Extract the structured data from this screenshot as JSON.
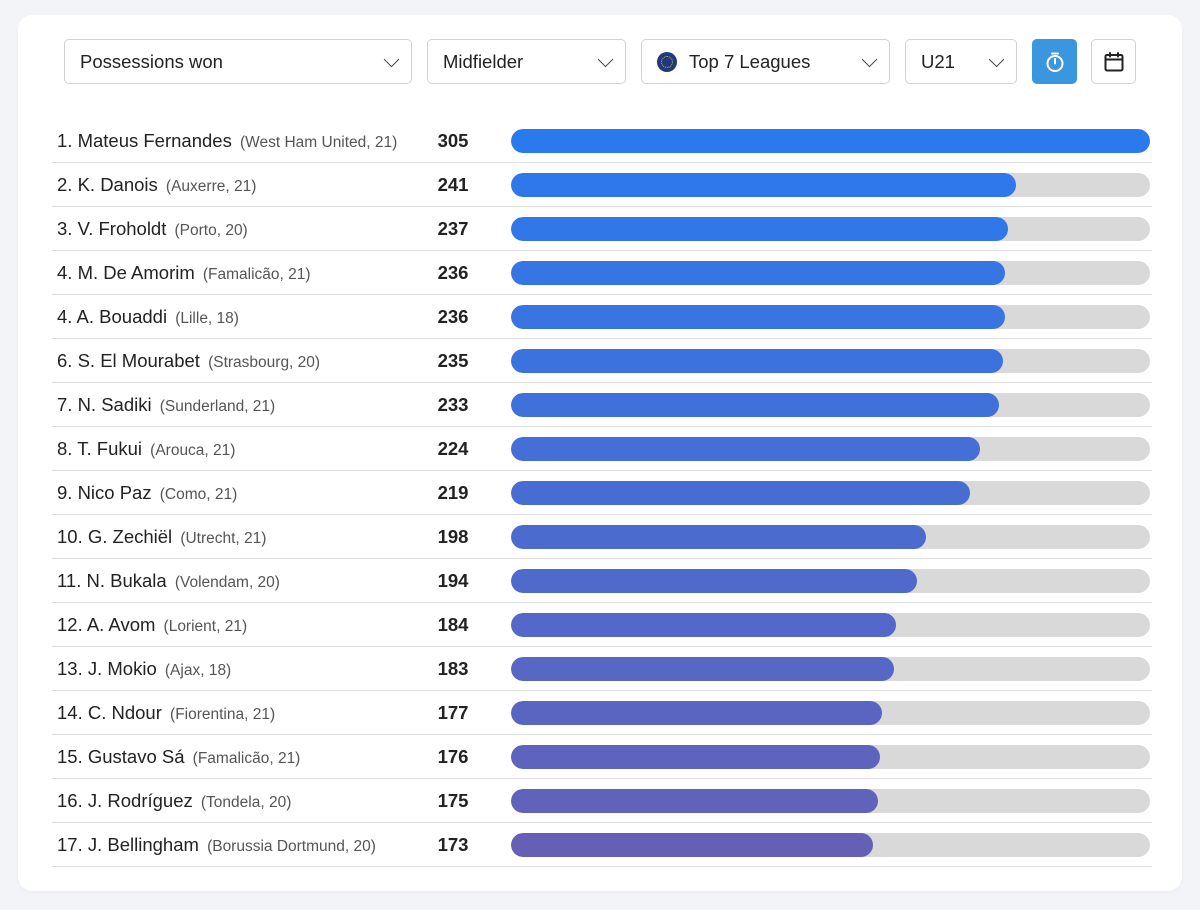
{
  "filters": {
    "metric": "Possessions won",
    "position": "Midfielder",
    "competition": "Top 7 Leagues",
    "age": "U21"
  },
  "icons": {
    "competition": "globe-icon",
    "timer": "stopwatch-icon",
    "calendar": "calendar-icon",
    "dropdown": "chevron-down-icon"
  },
  "colors": {
    "accent": "#3a96df",
    "bar_start": "#2a78ee",
    "bar_end": "#6560b6",
    "track": "#d9d9d9"
  },
  "chart_data": {
    "type": "bar",
    "orientation": "horizontal",
    "xlim": [
      0,
      305
    ],
    "rows": [
      {
        "label": "1. Mateus Fernandes",
        "meta": "(West Ham United, 21)",
        "value": 305
      },
      {
        "label": "2. K. Danois",
        "meta": "(Auxerre, 21)",
        "value": 241
      },
      {
        "label": "3. V. Froholdt",
        "meta": "(Porto, 20)",
        "value": 237
      },
      {
        "label": "4. M. De Amorim",
        "meta": "(Famalicão, 21)",
        "value": 236
      },
      {
        "label": "4. A. Bouaddi",
        "meta": "(Lille, 18)",
        "value": 236
      },
      {
        "label": "6. S. El Mourabet",
        "meta": "(Strasbourg, 20)",
        "value": 235
      },
      {
        "label": "7. N. Sadiki",
        "meta": "(Sunderland, 21)",
        "value": 233
      },
      {
        "label": "8. T. Fukui",
        "meta": "(Arouca, 21)",
        "value": 224
      },
      {
        "label": "9. Nico Paz",
        "meta": "(Como, 21)",
        "value": 219
      },
      {
        "label": "10. G. Zechiël",
        "meta": "(Utrecht, 21)",
        "value": 198
      },
      {
        "label": "11. N. Bukala",
        "meta": "(Volendam, 20)",
        "value": 194
      },
      {
        "label": "12. A. Avom",
        "meta": "(Lorient, 21)",
        "value": 184
      },
      {
        "label": "13. J. Mokio",
        "meta": "(Ajax, 18)",
        "value": 183
      },
      {
        "label": "14. C. Ndour",
        "meta": "(Fiorentina, 21)",
        "value": 177
      },
      {
        "label": "15. Gustavo Sá",
        "meta": "(Famalicão, 21)",
        "value": 176
      },
      {
        "label": "16. J. Rodríguez",
        "meta": "(Tondela, 20)",
        "value": 175
      },
      {
        "label": "17. J. Bellingham",
        "meta": "(Borussia Dortmund, 20)",
        "value": 173
      }
    ]
  }
}
